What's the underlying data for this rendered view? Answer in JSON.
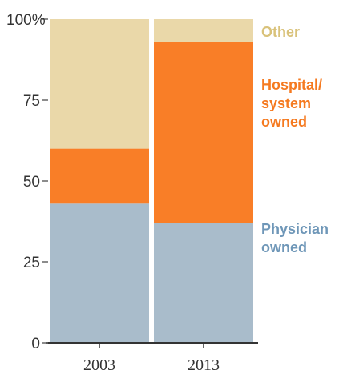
{
  "chart_data": {
    "type": "bar",
    "stacked": true,
    "categories": [
      "2003",
      "2013"
    ],
    "series": [
      {
        "name": "Physician owned",
        "values": [
          43,
          37
        ],
        "color": "#a9bccb"
      },
      {
        "name": "Hospital/ system owned",
        "values": [
          17,
          56
        ],
        "color": "#f97e27"
      },
      {
        "name": "Other",
        "values": [
          40,
          7
        ],
        "color": "#ead8a9"
      }
    ],
    "legend_lines": [
      {
        "series": 0,
        "lines": [
          "Physician",
          "owned"
        ]
      },
      {
        "series": 1,
        "lines": [
          "Hospital/",
          "system",
          "owned"
        ]
      },
      {
        "series": 2,
        "lines": [
          "Other"
        ]
      }
    ],
    "legend_placement": "right",
    "ylim": [
      0,
      100
    ],
    "yticks": [
      {
        "value": 0,
        "label": "0"
      },
      {
        "value": 25,
        "label": "25"
      },
      {
        "value": 50,
        "label": "50"
      },
      {
        "value": 75,
        "label": "75"
      },
      {
        "value": 100,
        "label": "100%"
      }
    ],
    "grid": false
  }
}
